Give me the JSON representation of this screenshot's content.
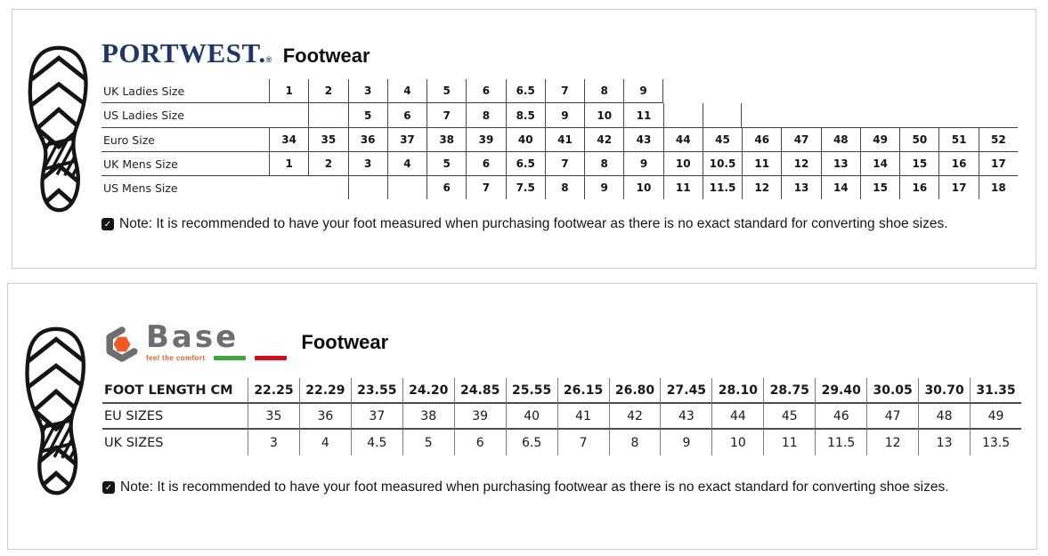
{
  "portwest_panel": {
    "brand": "PORTWEST.",
    "reg_mark": "®",
    "brand_color": "#1c3768",
    "product": "Footwear",
    "table": {
      "columns": 19,
      "rows": [
        {
          "label": "UK Ladies Size",
          "hl": "bottom",
          "lead_open": 0,
          "cap_right": true,
          "cells": [
            "1",
            "2",
            "3",
            "4",
            "5",
            "6",
            "6.5",
            "7",
            "8",
            "9"
          ]
        },
        {
          "label": "US Ladies Size",
          "hl": "none",
          "lead_open": 1,
          "cap_right": true,
          "cells": [
            "",
            "",
            "5",
            "6",
            "7",
            "8",
            "8.5",
            "9",
            "10",
            "11",
            "",
            ""
          ]
        },
        {
          "label": "Euro Size",
          "hl": "top",
          "lead_open": 0,
          "cap_right": false,
          "cells": [
            "34",
            "35",
            "36",
            "37",
            "38",
            "39",
            "40",
            "41",
            "42",
            "43",
            "44",
            "45",
            "46",
            "47",
            "48",
            "49",
            "50",
            "51",
            "52"
          ]
        },
        {
          "label": "UK Mens Size",
          "hl": "top",
          "lead_open": 0,
          "cap_right": false,
          "cells": [
            "1",
            "2",
            "3",
            "4",
            "5",
            "6",
            "6.5",
            "7",
            "8",
            "9",
            "10",
            "10.5",
            "11",
            "12",
            "13",
            "14",
            "15",
            "16",
            "17"
          ]
        },
        {
          "label": "US Mens Size",
          "hl": "top",
          "lead_open": 2,
          "cap_right": false,
          "cells": [
            "",
            "",
            "",
            "",
            "6",
            "7",
            "7.5",
            "8",
            "9",
            "10",
            "11",
            "11.5",
            "12",
            "13",
            "14",
            "15",
            "16",
            "17",
            "18"
          ]
        }
      ]
    },
    "note": "Note: It is recommended to have your foot measured when purchasing footwear as there is no exact standard for converting shoe sizes.",
    "note_check": "✓"
  },
  "base_panel": {
    "brand": "Base",
    "brand_color": "#6d6e71",
    "tagline": "feel the comfort",
    "accent_orange": "#f15a24",
    "flag_green": "#3aaa35",
    "flag_red": "#e30613",
    "product": "Footwear",
    "table": {
      "columns": 15,
      "rows": [
        {
          "label": "FOOT LENGTH CM",
          "hl": "bottom",
          "lead_open": 0,
          "cap_right": false,
          "cells": [
            "22.25",
            "22.29",
            "23.55",
            "24.20",
            "24.85",
            "25.55",
            "26.15",
            "26.80",
            "27.45",
            "28.10",
            "28.75",
            "29.40",
            "30.05",
            "30.70",
            "31.35"
          ]
        },
        {
          "label": "EU SIZES",
          "hl": "bottom",
          "lead_open": 0,
          "cap_right": false,
          "cells": [
            "35",
            "36",
            "37",
            "38",
            "39",
            "40",
            "41",
            "42",
            "43",
            "44",
            "45",
            "46",
            "47",
            "48",
            "49"
          ]
        },
        {
          "label": "UK SIZES",
          "hl": "none",
          "lead_open": 0,
          "cap_right": false,
          "cells": [
            "3",
            "4",
            "4.5",
            "5",
            "6",
            "6.5",
            "7",
            "8",
            "9",
            "10",
            "11",
            "11.5",
            "12",
            "13",
            "13.5"
          ]
        }
      ]
    },
    "note": "Note: It is recommended to have your foot measured when purchasing footwear as there is no exact standard for converting shoe sizes.",
    "note_check": "✓"
  }
}
